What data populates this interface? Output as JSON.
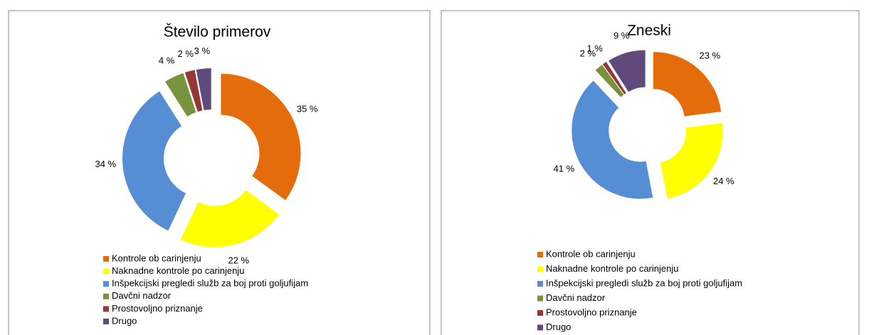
{
  "chart_data": [
    {
      "type": "pie",
      "title": "Število primerov",
      "categories": [
        "Kontrole ob carinjenju",
        "Naknadne kontrole po carinjenju",
        "Inšpekcijski pregledi služb za boj proti goljufijam",
        "Davčni nadzor",
        "Prostovoljno priznanje",
        "Drugo"
      ],
      "values": [
        35,
        22,
        34,
        4,
        2,
        3
      ],
      "value_labels": [
        "35 %",
        "22 %",
        "34 %",
        "4 %",
        "2 %",
        "3 %"
      ],
      "colors": [
        "#e46c0a",
        "#ffff00",
        "#558ed5",
        "#77933c",
        "#953735",
        "#604a7b"
      ]
    },
    {
      "type": "pie",
      "title": "Zneski",
      "categories": [
        "Kontrole ob carinjenju",
        "Naknadne kontrole po carinjenju",
        "Inšpekcijski pregledi služb za boj proti goljufijam",
        "Davčni nadzor",
        "Prostovoljno priznanje",
        "Drugo"
      ],
      "values": [
        23,
        24,
        41,
        2,
        1,
        9
      ],
      "value_labels": [
        "23 %",
        "24 %",
        "41 %",
        "2 %",
        "1 %",
        "9 %"
      ],
      "colors": [
        "#e46c0a",
        "#ffff00",
        "#558ed5",
        "#77933c",
        "#953735",
        "#604a7b"
      ]
    }
  ]
}
